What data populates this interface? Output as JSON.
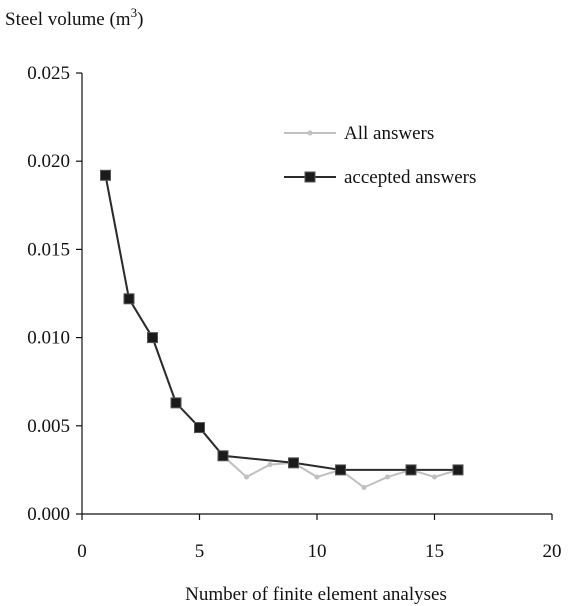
{
  "chart_data": {
    "type": "line",
    "title": "",
    "ylabel": "Steel volume (m",
    "ylabel_superscript": "3",
    "ylabel_close": ")",
    "xlabel": "Number of finite element analyses",
    "xlim": [
      0,
      20
    ],
    "ylim": [
      0,
      0.025
    ],
    "x_ticks": [
      "0",
      "5",
      "10",
      "15",
      "20"
    ],
    "y_ticks": [
      "0.000",
      "0.005",
      "0.010",
      "0.015",
      "0.020",
      "0.025"
    ],
    "grid": false,
    "legend_position": "top-right",
    "series": [
      {
        "name": "All answers",
        "color": "#c0c0c0",
        "marker": "small-diamond",
        "x": [
          1,
          2,
          3,
          4,
          5,
          6,
          7,
          8,
          9,
          10,
          11,
          12,
          13,
          14,
          15,
          16
        ],
        "y": [
          0.0192,
          0.0122,
          0.01,
          0.0063,
          0.0049,
          0.0033,
          0.0021,
          0.0028,
          0.0029,
          0.0021,
          0.0025,
          0.0015,
          0.0021,
          0.0025,
          0.0021,
          0.0025
        ]
      },
      {
        "name": "accepted answers",
        "color": "#2b2b2b",
        "marker": "square",
        "x": [
          1,
          2,
          3,
          4,
          5,
          6,
          9,
          11,
          14,
          16
        ],
        "y": [
          0.0192,
          0.0122,
          0.01,
          0.0063,
          0.0049,
          0.0033,
          0.0029,
          0.0025,
          0.0025,
          0.0025
        ]
      }
    ]
  }
}
